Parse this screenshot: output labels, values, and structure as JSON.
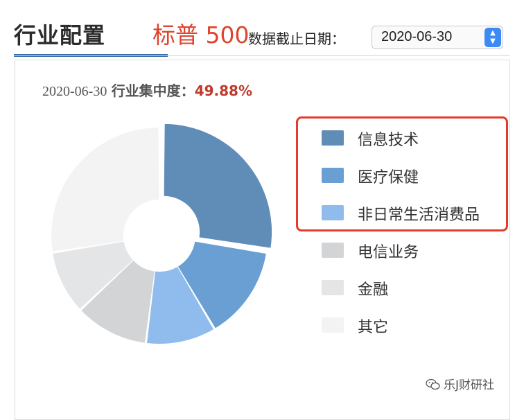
{
  "header": {
    "title": "行业配置",
    "annotation": "标普 500",
    "date_label": "数据截止日期：",
    "date_value": "2020-06-30"
  },
  "summary": {
    "date": "2020-06-30",
    "label": "行业集中度：",
    "value": "49.88%"
  },
  "chart_data": {
    "type": "pie",
    "variant": "donut",
    "title": "",
    "categories": [
      "信息技术",
      "医疗保健",
      "非日常生活消费品",
      "电信业务",
      "金融",
      "其它"
    ],
    "values": [
      27.5,
      14.0,
      10.5,
      11.0,
      9.5,
      27.5
    ],
    "colors": [
      "#5f8db7",
      "#6a9fd4",
      "#8fbcec",
      "#d2d4d6",
      "#e4e5e6",
      "#f3f3f4"
    ],
    "exploded": [
      "信息技术"
    ],
    "legend_position": "right"
  },
  "icons": {
    "stepper": "up-down-arrows-icon",
    "watermark": "wechat-icon"
  },
  "watermark": {
    "text": "乐J财研社"
  }
}
